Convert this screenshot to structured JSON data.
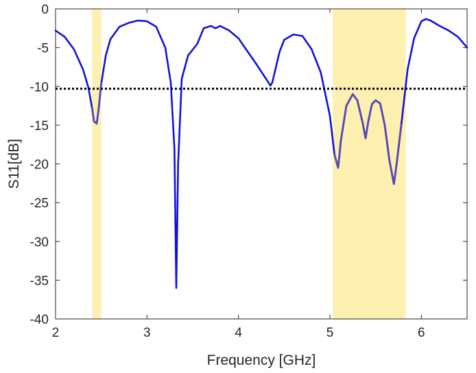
{
  "chart_data": {
    "type": "line",
    "title": "",
    "xlabel": "Frequency [GHz]",
    "ylabel": "S11[dB]",
    "xlim": [
      2,
      6.5
    ],
    "ylim": [
      -40,
      0
    ],
    "xticks": [
      2,
      3,
      4,
      5,
      6
    ],
    "yticks": [
      0,
      -5,
      -10,
      -15,
      -20,
      -25,
      -30,
      -35,
      -40
    ],
    "xtick_labels": [
      "2",
      "3",
      "4",
      "5",
      "6"
    ],
    "ytick_labels": [
      "0",
      "-5",
      "-10",
      "-15",
      "-20",
      "-25",
      "-30",
      "-35",
      "-40"
    ],
    "grid": false,
    "legend": "none",
    "threshold": {
      "y": -10.3,
      "style": "dotted",
      "color": "#000000"
    },
    "bands": [
      {
        "x0": 2.4,
        "x1": 2.5,
        "color": "#fdf0b0"
      },
      {
        "x0": 5.03,
        "x1": 5.83,
        "color": "#fdf0b0"
      }
    ],
    "series": [
      {
        "color": "#1111dd",
        "highlight_color": "#5548b8",
        "x": [
          2.0,
          2.1,
          2.2,
          2.3,
          2.36,
          2.4,
          2.42,
          2.45,
          2.47,
          2.5,
          2.55,
          2.6,
          2.7,
          2.8,
          2.9,
          3.0,
          3.1,
          3.2,
          3.26,
          3.3,
          3.32,
          3.34,
          3.38,
          3.45,
          3.55,
          3.62,
          3.7,
          3.75,
          3.8,
          3.9,
          4.0,
          4.1,
          4.2,
          4.3,
          4.35,
          4.37,
          4.4,
          4.45,
          4.5,
          4.6,
          4.7,
          4.8,
          4.9,
          5.0,
          5.05,
          5.09,
          5.12,
          5.18,
          5.25,
          5.3,
          5.36,
          5.39,
          5.42,
          5.46,
          5.5,
          5.55,
          5.6,
          5.65,
          5.7,
          5.73,
          5.78,
          5.85,
          5.92,
          6.0,
          6.05,
          6.1,
          6.2,
          6.3,
          6.4,
          6.5
        ],
        "y": [
          -2.8,
          -3.6,
          -5.2,
          -7.8,
          -10.2,
          -12.8,
          -14.5,
          -14.8,
          -13.0,
          -9.6,
          -6.0,
          -3.9,
          -2.3,
          -1.8,
          -1.5,
          -1.6,
          -2.3,
          -5.0,
          -9.5,
          -18.0,
          -36.0,
          -20.0,
          -9.0,
          -6.0,
          -4.5,
          -2.5,
          -2.2,
          -2.5,
          -2.2,
          -2.8,
          -3.8,
          -5.5,
          -7.2,
          -9.0,
          -9.9,
          -9.5,
          -8.0,
          -5.5,
          -4.0,
          -3.3,
          -3.5,
          -5.2,
          -8.2,
          -13.8,
          -18.8,
          -20.5,
          -17.0,
          -12.5,
          -11.0,
          -11.8,
          -14.8,
          -16.7,
          -14.5,
          -12.3,
          -11.8,
          -12.2,
          -15.0,
          -19.5,
          -22.6,
          -20.0,
          -15.0,
          -7.8,
          -3.8,
          -1.6,
          -1.3,
          -1.5,
          -2.2,
          -2.8,
          -3.6,
          -5.0
        ]
      }
    ]
  }
}
